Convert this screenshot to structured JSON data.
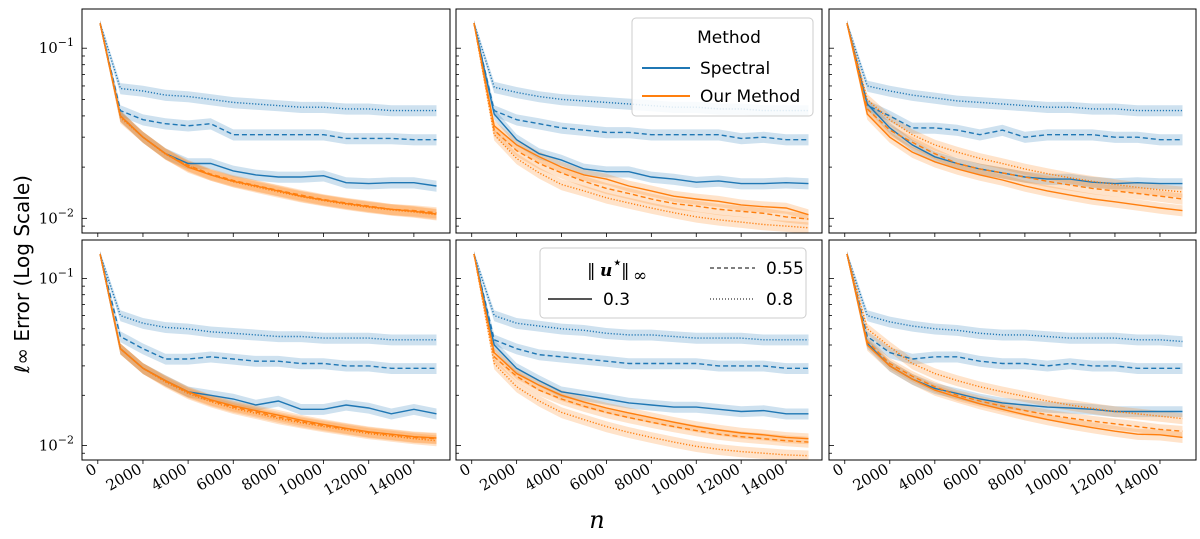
{
  "figure": {
    "ylabel": "ℓ∞ Error (Log Scale)",
    "xlabel": "n",
    "y_ticks": [
      {
        "value": 0.1,
        "base": "10",
        "exp": "−1"
      },
      {
        "value": 0.01,
        "base": "10",
        "exp": "−2"
      }
    ],
    "x_ticks": [
      0,
      2000,
      4000,
      6000,
      8000,
      10000,
      12000,
      14000
    ]
  },
  "legend_method": {
    "title": "Method",
    "entries": [
      {
        "label": "Spectral",
        "color": "#1f77b4"
      },
      {
        "label": "Our Method",
        "color": "#ff7f0e"
      }
    ]
  },
  "legend_norm": {
    "title_main": "u",
    "title_sup": "⋆",
    "title_sub": "∞",
    "entries": [
      {
        "label": "0.3",
        "style": "solid"
      },
      {
        "label": "0.55",
        "style": "dashed"
      },
      {
        "label": "0.8",
        "style": "dotted"
      }
    ]
  },
  "colors": {
    "spectral": "#1f77b4",
    "ours": "#ff7f0e"
  },
  "chart_data": {
    "type": "line",
    "scale": {
      "x": "linear",
      "y": "log"
    },
    "xlim": [
      -700,
      15600
    ],
    "ylim": [
      0.0082,
      0.17
    ],
    "grid": false,
    "n": [
      100,
      1000,
      2000,
      3000,
      4000,
      5000,
      6000,
      7000,
      8000,
      9000,
      10000,
      11000,
      12000,
      13000,
      14000,
      15000
    ],
    "panels": [
      {
        "spectral": {
          "0.3": [
            0.14,
            0.04,
            0.03,
            0.024,
            0.021,
            0.021,
            0.019,
            0.018,
            0.0175,
            0.0175,
            0.0178,
            0.0162,
            0.016,
            0.0162,
            0.0162,
            0.0155
          ],
          "0.55": [
            0.14,
            0.043,
            0.038,
            0.036,
            0.035,
            0.036,
            0.031,
            0.031,
            0.031,
            0.031,
            0.031,
            0.0295,
            0.0295,
            0.0295,
            0.029,
            0.029
          ],
          "0.8": [
            0.14,
            0.058,
            0.056,
            0.053,
            0.052,
            0.05,
            0.048,
            0.047,
            0.046,
            0.045,
            0.045,
            0.044,
            0.044,
            0.043,
            0.043,
            0.043
          ]
        },
        "ours": {
          "0.3": [
            0.14,
            0.04,
            0.03,
            0.024,
            0.02,
            0.018,
            0.0165,
            0.0155,
            0.0145,
            0.0135,
            0.0128,
            0.0122,
            0.0117,
            0.0113,
            0.011,
            0.0106
          ],
          "0.55": [
            0.14,
            0.04,
            0.03,
            0.024,
            0.0205,
            0.0182,
            0.0167,
            0.0156,
            0.0146,
            0.0137,
            0.0129,
            0.0123,
            0.0118,
            0.0113,
            0.0111,
            0.0108
          ],
          "0.8": [
            0.14,
            0.039,
            0.03,
            0.0238,
            0.0203,
            0.018,
            0.0164,
            0.0153,
            0.0143,
            0.0134,
            0.0127,
            0.0121,
            0.0116,
            0.0112,
            0.0109,
            0.0105
          ]
        }
      },
      {
        "spectral": {
          "0.3": [
            0.14,
            0.041,
            0.029,
            0.024,
            0.022,
            0.0195,
            0.0188,
            0.0188,
            0.0175,
            0.017,
            0.0163,
            0.0166,
            0.016,
            0.016,
            0.0162,
            0.016
          ],
          "0.55": [
            0.14,
            0.043,
            0.038,
            0.036,
            0.034,
            0.033,
            0.032,
            0.032,
            0.031,
            0.031,
            0.031,
            0.031,
            0.0295,
            0.03,
            0.029,
            0.029
          ],
          "0.8": [
            0.14,
            0.059,
            0.055,
            0.052,
            0.05,
            0.049,
            0.048,
            0.047,
            0.046,
            0.045,
            0.045,
            0.044,
            0.044,
            0.043,
            0.043,
            0.043
          ]
        },
        "ours": {
          "0.3": [
            0.14,
            0.035,
            0.027,
            0.023,
            0.02,
            0.018,
            0.017,
            0.0155,
            0.0145,
            0.0135,
            0.013,
            0.0126,
            0.012,
            0.0117,
            0.0115,
            0.0105
          ],
          "0.55": [
            0.14,
            0.033,
            0.025,
            0.021,
            0.0185,
            0.0165,
            0.015,
            0.014,
            0.013,
            0.0122,
            0.0118,
            0.0113,
            0.011,
            0.0107,
            0.0102,
            0.0099
          ],
          "0.8": [
            0.14,
            0.031,
            0.0225,
            0.0185,
            0.0158,
            0.0145,
            0.0132,
            0.0123,
            0.0115,
            0.0108,
            0.0102,
            0.0098,
            0.0095,
            0.0092,
            0.009,
            0.0088
          ]
        }
      },
      {
        "spectral": {
          "0.3": [
            0.14,
            0.047,
            0.034,
            0.027,
            0.023,
            0.021,
            0.0195,
            0.0185,
            0.0175,
            0.017,
            0.017,
            0.0163,
            0.016,
            0.0162,
            0.016,
            0.016
          ],
          "0.55": [
            0.14,
            0.046,
            0.04,
            0.034,
            0.034,
            0.033,
            0.031,
            0.033,
            0.03,
            0.031,
            0.031,
            0.031,
            0.03,
            0.03,
            0.029,
            0.029
          ],
          "0.8": [
            0.14,
            0.06,
            0.056,
            0.053,
            0.051,
            0.049,
            0.048,
            0.047,
            0.046,
            0.045,
            0.045,
            0.044,
            0.044,
            0.043,
            0.043,
            0.043
          ]
        },
        "ours": {
          "0.3": [
            0.14,
            0.041,
            0.03,
            0.0245,
            0.0215,
            0.0195,
            0.018,
            0.0168,
            0.0155,
            0.0145,
            0.0137,
            0.013,
            0.0125,
            0.012,
            0.0115,
            0.0111
          ],
          "0.55": [
            0.14,
            0.044,
            0.033,
            0.028,
            0.024,
            0.021,
            0.0195,
            0.0185,
            0.0175,
            0.0165,
            0.0157,
            0.015,
            0.0145,
            0.014,
            0.0135,
            0.013
          ],
          "0.8": [
            0.14,
            0.05,
            0.038,
            0.031,
            0.027,
            0.0245,
            0.0225,
            0.021,
            0.0195,
            0.0183,
            0.0173,
            0.0165,
            0.0158,
            0.0152,
            0.0147,
            0.0143
          ]
        }
      },
      {
        "spectral": {
          "0.3": [
            0.14,
            0.038,
            0.029,
            0.0245,
            0.021,
            0.02,
            0.019,
            0.0175,
            0.0185,
            0.0165,
            0.0165,
            0.0175,
            0.0168,
            0.0155,
            0.0165,
            0.0155
          ],
          "0.55": [
            0.14,
            0.045,
            0.038,
            0.033,
            0.033,
            0.034,
            0.033,
            0.032,
            0.032,
            0.031,
            0.031,
            0.03,
            0.03,
            0.029,
            0.029,
            0.029
          ],
          "0.8": [
            0.14,
            0.06,
            0.054,
            0.051,
            0.05,
            0.048,
            0.047,
            0.046,
            0.045,
            0.045,
            0.044,
            0.044,
            0.044,
            0.043,
            0.043,
            0.043
          ]
        },
        "ours": {
          "0.3": [
            0.14,
            0.038,
            0.029,
            0.0245,
            0.021,
            0.0188,
            0.0173,
            0.0162,
            0.0152,
            0.0142,
            0.0134,
            0.0127,
            0.0121,
            0.0117,
            0.0113,
            0.0111
          ],
          "0.55": [
            0.14,
            0.038,
            0.029,
            0.0243,
            0.0208,
            0.0186,
            0.017,
            0.0159,
            0.0148,
            0.0139,
            0.0132,
            0.0126,
            0.012,
            0.0116,
            0.0112,
            0.011
          ],
          "0.8": [
            0.14,
            0.038,
            0.029,
            0.024,
            0.0205,
            0.0183,
            0.0167,
            0.0156,
            0.0145,
            0.0137,
            0.013,
            0.0124,
            0.0118,
            0.0114,
            0.011,
            0.0107
          ]
        }
      },
      {
        "spectral": {
          "0.3": [
            0.14,
            0.04,
            0.029,
            0.0245,
            0.021,
            0.02,
            0.019,
            0.018,
            0.0175,
            0.017,
            0.017,
            0.0165,
            0.016,
            0.0162,
            0.0155,
            0.0155
          ],
          "0.55": [
            0.14,
            0.043,
            0.038,
            0.035,
            0.034,
            0.033,
            0.032,
            0.031,
            0.031,
            0.031,
            0.031,
            0.03,
            0.03,
            0.03,
            0.029,
            0.029
          ],
          "0.8": [
            0.14,
            0.06,
            0.054,
            0.052,
            0.05,
            0.049,
            0.047,
            0.046,
            0.046,
            0.045,
            0.044,
            0.044,
            0.044,
            0.043,
            0.043,
            0.043
          ]
        },
        "ours": {
          "0.3": [
            0.14,
            0.036,
            0.027,
            0.023,
            0.02,
            0.0182,
            0.0168,
            0.0157,
            0.0147,
            0.0138,
            0.013,
            0.0124,
            0.0119,
            0.0116,
            0.0112,
            0.011
          ],
          "0.55": [
            0.14,
            0.034,
            0.026,
            0.0215,
            0.019,
            0.0172,
            0.0158,
            0.0147,
            0.0138,
            0.013,
            0.0123,
            0.0117,
            0.0113,
            0.011,
            0.0107,
            0.0105
          ],
          "0.8": [
            0.14,
            0.031,
            0.0225,
            0.0185,
            0.0158,
            0.0143,
            0.013,
            0.012,
            0.0112,
            0.0105,
            0.0099,
            0.0095,
            0.0092,
            0.009,
            0.0088,
            0.0087
          ]
        }
      },
      {
        "spectral": {
          "0.3": [
            0.14,
            0.041,
            0.03,
            0.025,
            0.022,
            0.0205,
            0.019,
            0.018,
            0.0175,
            0.017,
            0.0168,
            0.0165,
            0.016,
            0.016,
            0.016,
            0.016
          ],
          "0.55": [
            0.14,
            0.045,
            0.036,
            0.033,
            0.034,
            0.034,
            0.032,
            0.031,
            0.031,
            0.03,
            0.031,
            0.03,
            0.03,
            0.029,
            0.029,
            0.029
          ],
          "0.8": [
            0.14,
            0.06,
            0.055,
            0.052,
            0.05,
            0.049,
            0.047,
            0.046,
            0.046,
            0.045,
            0.044,
            0.044,
            0.044,
            0.043,
            0.043,
            0.042
          ]
        },
        "ours": {
          "0.3": [
            0.14,
            0.04,
            0.03,
            0.025,
            0.0215,
            0.0195,
            0.0178,
            0.0165,
            0.0153,
            0.0143,
            0.0135,
            0.0128,
            0.0122,
            0.0117,
            0.0116,
            0.0112
          ],
          "0.55": [
            0.14,
            0.042,
            0.031,
            0.026,
            0.0225,
            0.02,
            0.0185,
            0.0172,
            0.0162,
            0.0153,
            0.0146,
            0.014,
            0.0135,
            0.013,
            0.0125,
            0.0122
          ],
          "0.8": [
            0.14,
            0.05,
            0.039,
            0.031,
            0.027,
            0.0245,
            0.0225,
            0.021,
            0.0197,
            0.0185,
            0.0175,
            0.0167,
            0.016,
            0.0155,
            0.015,
            0.0145
          ]
        }
      }
    ]
  }
}
